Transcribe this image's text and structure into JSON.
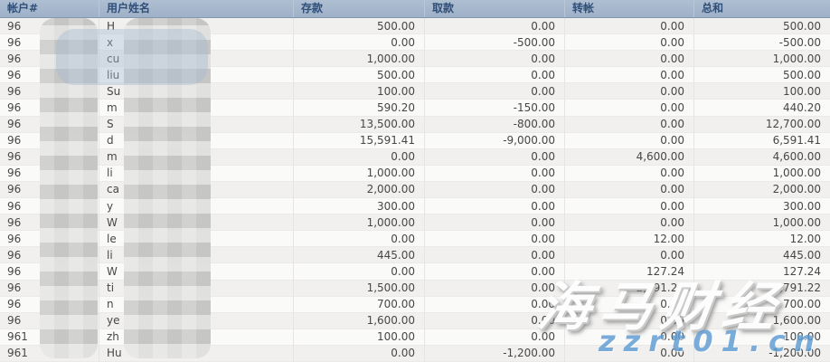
{
  "table": {
    "columns": [
      {
        "key": "account",
        "label": "帐户#"
      },
      {
        "key": "name",
        "label": "用户姓名"
      },
      {
        "key": "deposit",
        "label": "存款"
      },
      {
        "key": "withdraw",
        "label": "取款"
      },
      {
        "key": "transfer",
        "label": "转帐"
      },
      {
        "key": "total",
        "label": "总和"
      }
    ],
    "rows": [
      {
        "account": "96",
        "name": "H",
        "deposit": "500.00",
        "withdraw": "0.00",
        "transfer": "0.00",
        "total": "500.00"
      },
      {
        "account": "96",
        "name": "x",
        "deposit": "0.00",
        "withdraw": "-500.00",
        "transfer": "0.00",
        "total": "-500.00"
      },
      {
        "account": "96",
        "name": "cu",
        "deposit": "1,000.00",
        "withdraw": "0.00",
        "transfer": "0.00",
        "total": "1,000.00"
      },
      {
        "account": "96",
        "name": "liu",
        "deposit": "500.00",
        "withdraw": "0.00",
        "transfer": "0.00",
        "total": "500.00"
      },
      {
        "account": "96",
        "name": "Su",
        "deposit": "100.00",
        "withdraw": "0.00",
        "transfer": "0.00",
        "total": "100.00"
      },
      {
        "account": "96",
        "name": "m",
        "deposit": "590.20",
        "withdraw": "-150.00",
        "transfer": "0.00",
        "total": "440.20"
      },
      {
        "account": "96",
        "name": "S",
        "deposit": "13,500.00",
        "withdraw": "-800.00",
        "transfer": "0.00",
        "total": "12,700.00"
      },
      {
        "account": "96",
        "name": "d",
        "deposit": "15,591.41",
        "withdraw": "-9,000.00",
        "transfer": "0.00",
        "total": "6,591.41"
      },
      {
        "account": "96",
        "name": "m",
        "deposit": "0.00",
        "withdraw": "0.00",
        "transfer": "4,600.00",
        "total": "4,600.00"
      },
      {
        "account": "96",
        "name": "li",
        "deposit": "1,000.00",
        "withdraw": "0.00",
        "transfer": "0.00",
        "total": "1,000.00"
      },
      {
        "account": "96",
        "name": "ca",
        "deposit": "2,000.00",
        "withdraw": "0.00",
        "transfer": "0.00",
        "total": "2,000.00"
      },
      {
        "account": "96",
        "name": "y",
        "deposit": "300.00",
        "withdraw": "0.00",
        "transfer": "0.00",
        "total": "300.00"
      },
      {
        "account": "96",
        "name": "W",
        "deposit": "1,000.00",
        "withdraw": "0.00",
        "transfer": "0.00",
        "total": "1,000.00"
      },
      {
        "account": "96",
        "name": "le",
        "deposit": "0.00",
        "withdraw": "0.00",
        "transfer": "12.00",
        "total": "12.00"
      },
      {
        "account": "96",
        "name": "li",
        "deposit": "445.00",
        "withdraw": "0.00",
        "transfer": "0.00",
        "total": "445.00"
      },
      {
        "account": "96",
        "name": "W",
        "deposit": "0.00",
        "withdraw": "0.00",
        "transfer": "127.24",
        "total": "127.24"
      },
      {
        "account": "96",
        "name": "ti",
        "deposit": "1,500.00",
        "withdraw": "0.00",
        "transfer": "2,291.22",
        "total": "3,791.22"
      },
      {
        "account": "96",
        "name": "n",
        "deposit": "700.00",
        "withdraw": "0.00",
        "transfer": "0.00",
        "total": "700.00"
      },
      {
        "account": "96",
        "name": "ye",
        "deposit": "1,600.00",
        "withdraw": "0.00",
        "transfer": "0.00",
        "total": "1,600.00"
      },
      {
        "account": "961",
        "name": "zh",
        "deposit": "100.00",
        "withdraw": "0.00",
        "transfer": "0.00",
        "total": "100.00"
      },
      {
        "account": "961",
        "name": "Hu",
        "deposit": "0.00",
        "withdraw": "-1,200.00",
        "transfer": "0.00",
        "total": "-1,200.00"
      }
    ]
  },
  "watermarks": {
    "brand": "海马财经",
    "site": "zzrt01.cn"
  },
  "colors": {
    "header_bg": "#a4b5cb",
    "header_text": "#2f4e78",
    "row_odd": "#f1f0ee",
    "row_even": "#fafaf9",
    "cell_text": "#474747",
    "watermark_site_blue": "#5f9cd4"
  }
}
